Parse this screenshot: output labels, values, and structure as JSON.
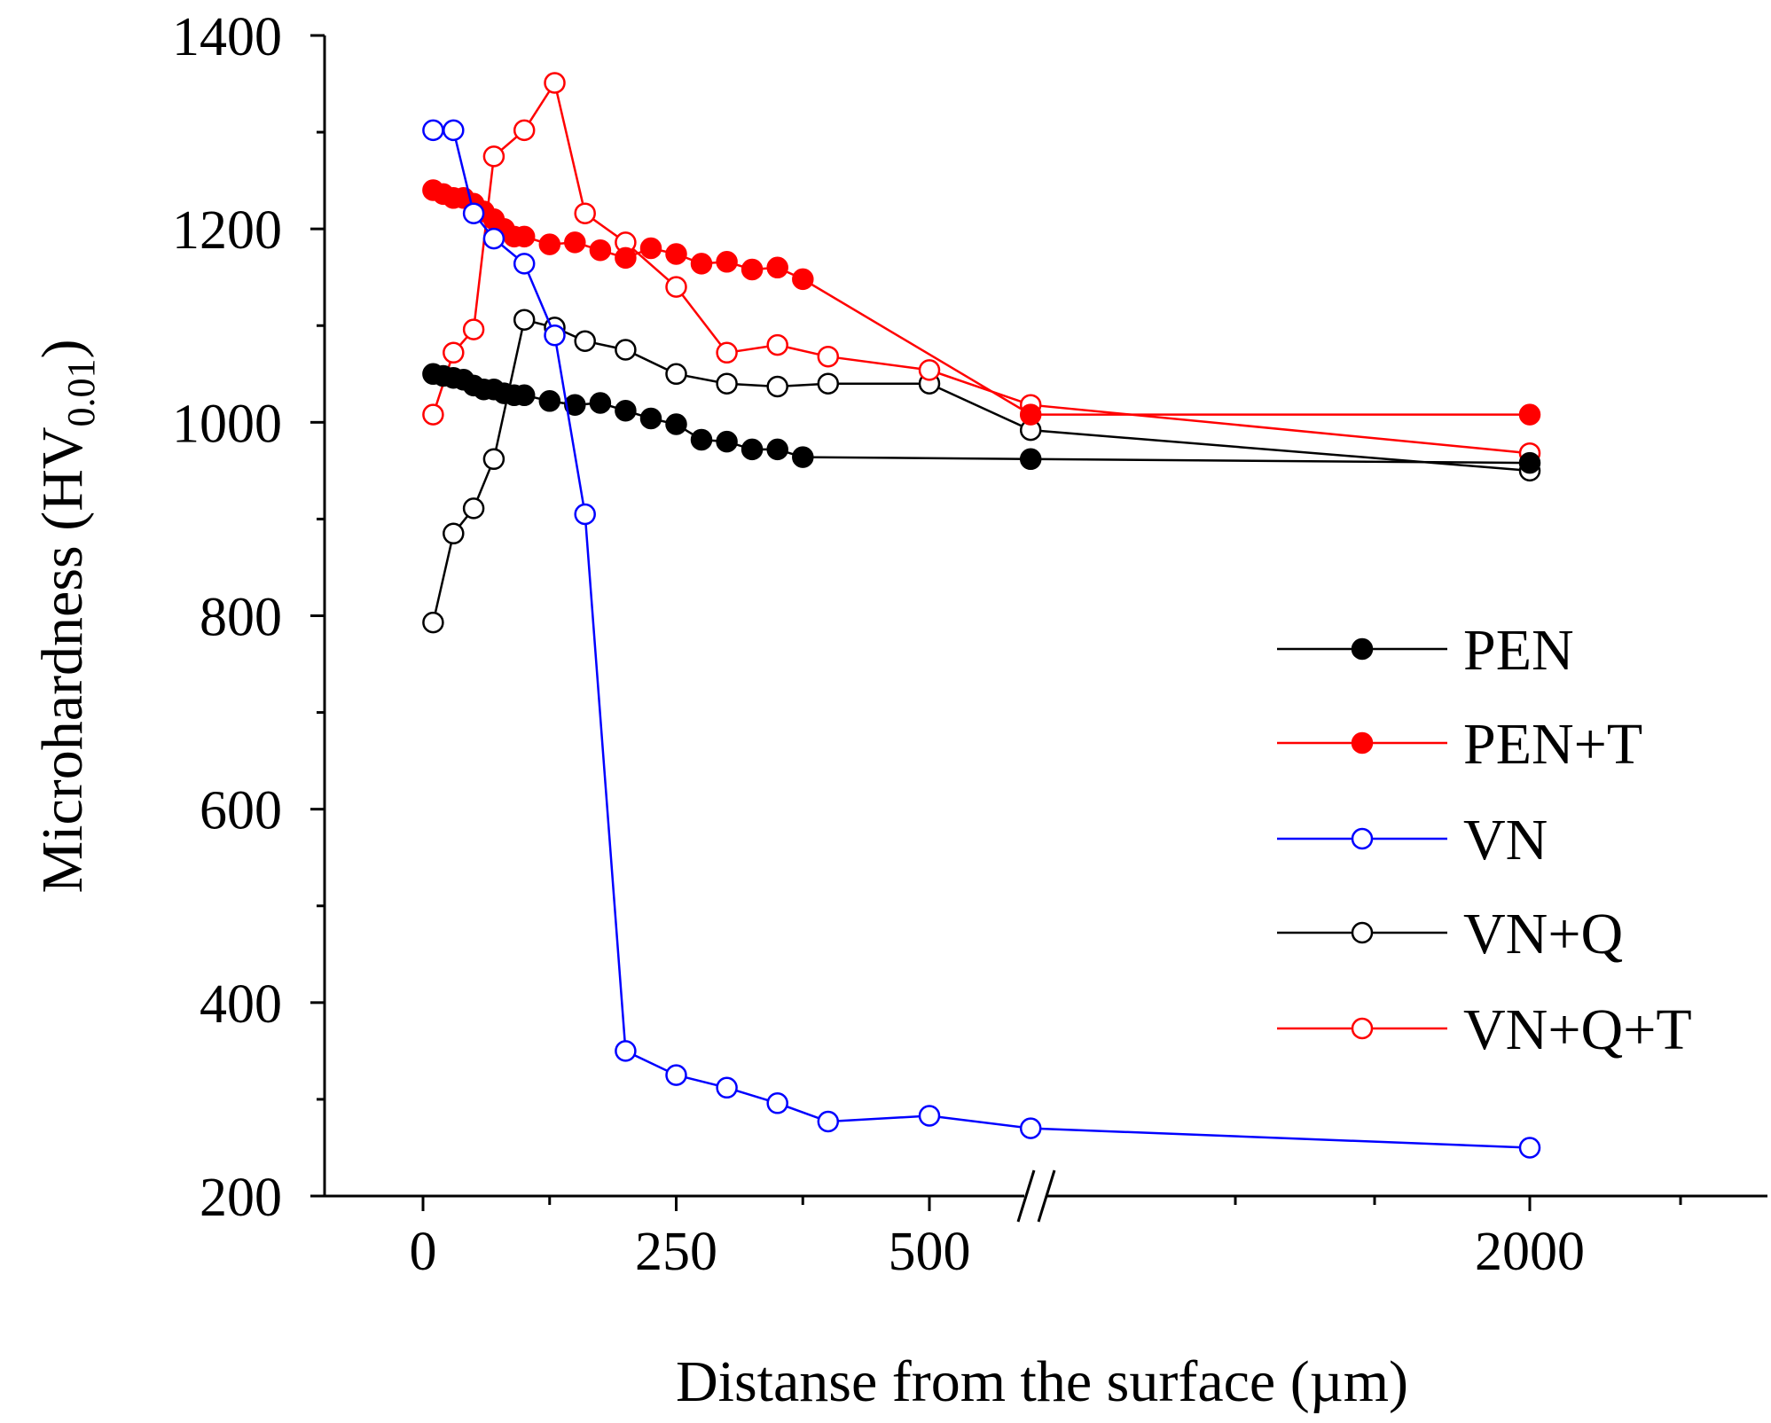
{
  "chart_data": {
    "type": "line",
    "title": "",
    "xlabel": "Distanse from the surface (µm)",
    "ylabel_main": "Microhardness (HV",
    "ylabel_sub": "0.01",
    "ylabel_close": ")",
    "ylim": [
      200,
      1400
    ],
    "yticks": [
      200,
      400,
      600,
      800,
      1000,
      1200,
      1400
    ],
    "xticks": [
      0,
      250,
      500,
      2000
    ],
    "x_axis_break": "between 500 and 2000",
    "legend_position": "right",
    "series": [
      {
        "name": "PEN",
        "color": "#000000",
        "marker": "filled-circle",
        "points": [
          [
            10,
            1050
          ],
          [
            20,
            1048
          ],
          [
            30,
            1046
          ],
          [
            40,
            1044
          ],
          [
            50,
            1038
          ],
          [
            60,
            1034
          ],
          [
            70,
            1034
          ],
          [
            80,
            1030
          ],
          [
            90,
            1028
          ],
          [
            100,
            1028
          ],
          [
            125,
            1022
          ],
          [
            150,
            1018
          ],
          [
            175,
            1020
          ],
          [
            200,
            1012
          ],
          [
            225,
            1004
          ],
          [
            250,
            998
          ],
          [
            275,
            982
          ],
          [
            300,
            980
          ],
          [
            325,
            972
          ],
          [
            350,
            972
          ],
          [
            375,
            964
          ],
          [
            600,
            962
          ],
          [
            2000,
            958
          ]
        ]
      },
      {
        "name": "PEN+T",
        "color": "#ff0000",
        "marker": "filled-circle",
        "points": [
          [
            10,
            1240
          ],
          [
            20,
            1236
          ],
          [
            30,
            1232
          ],
          [
            40,
            1232
          ],
          [
            50,
            1226
          ],
          [
            60,
            1218
          ],
          [
            70,
            1210
          ],
          [
            80,
            1200
          ],
          [
            90,
            1192
          ],
          [
            100,
            1192
          ],
          [
            125,
            1184
          ],
          [
            150,
            1186
          ],
          [
            175,
            1178
          ],
          [
            200,
            1170
          ],
          [
            225,
            1180
          ],
          [
            250,
            1174
          ],
          [
            275,
            1164
          ],
          [
            300,
            1166
          ],
          [
            325,
            1158
          ],
          [
            350,
            1160
          ],
          [
            375,
            1148
          ],
          [
            600,
            1008
          ],
          [
            2000,
            1008
          ]
        ]
      },
      {
        "name": "VN",
        "color": "#0000ff",
        "marker": "open-circle",
        "points": [
          [
            10,
            1302
          ],
          [
            30,
            1302
          ],
          [
            50,
            1216
          ],
          [
            70,
            1190
          ],
          [
            100,
            1164
          ],
          [
            130,
            1090
          ],
          [
            160,
            905
          ],
          [
            200,
            350
          ],
          [
            250,
            325
          ],
          [
            300,
            312
          ],
          [
            350,
            296
          ],
          [
            400,
            277
          ],
          [
            500,
            283
          ],
          [
            600,
            270
          ],
          [
            2000,
            250
          ]
        ]
      },
      {
        "name": "VN+Q",
        "color": "#000000",
        "marker": "open-circle",
        "points": [
          [
            10,
            793
          ],
          [
            30,
            885
          ],
          [
            50,
            911
          ],
          [
            70,
            962
          ],
          [
            100,
            1106
          ],
          [
            130,
            1098
          ],
          [
            160,
            1084
          ],
          [
            200,
            1075
          ],
          [
            250,
            1050
          ],
          [
            300,
            1040
          ],
          [
            350,
            1037
          ],
          [
            400,
            1040
          ],
          [
            500,
            1040
          ],
          [
            600,
            992
          ],
          [
            2000,
            950
          ]
        ]
      },
      {
        "name": "VN+Q+T",
        "color": "#ff0000",
        "marker": "open-circle",
        "points": [
          [
            10,
            1008
          ],
          [
            30,
            1072
          ],
          [
            50,
            1096
          ],
          [
            70,
            1275
          ],
          [
            100,
            1302
          ],
          [
            130,
            1351
          ],
          [
            160,
            1216
          ],
          [
            200,
            1186
          ],
          [
            250,
            1140
          ],
          [
            300,
            1072
          ],
          [
            350,
            1080
          ],
          [
            400,
            1068
          ],
          [
            500,
            1054
          ],
          [
            600,
            1018
          ],
          [
            2000,
            968
          ]
        ]
      }
    ]
  }
}
